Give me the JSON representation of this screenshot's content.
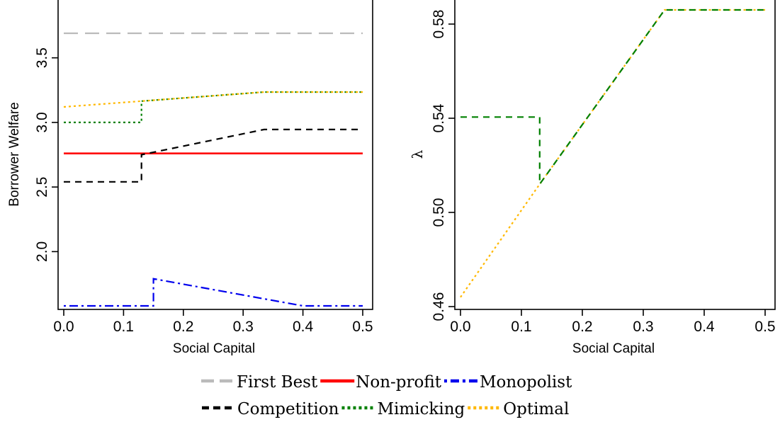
{
  "chart_data": [
    {
      "type": "line",
      "xlabel": "Social Capital",
      "ylabel": "Borrower Welfare",
      "xlim": [
        0.0,
        0.5
      ],
      "ylim": [
        1.6,
        3.9
      ],
      "x_ticks": [
        "0.0",
        "0.1",
        "0.2",
        "0.3",
        "0.4",
        "0.5"
      ],
      "y_ticks": [
        "2.0",
        "2.5",
        "3.0",
        "3.5"
      ],
      "series": [
        {
          "name": "First Best",
          "color": "#bbbbbb",
          "dash": "long",
          "points": [
            [
              0.0,
              3.69
            ],
            [
              0.5,
              3.69
            ]
          ]
        },
        {
          "name": "Non-profit",
          "color": "#ff0000",
          "dash": "solid",
          "points": [
            [
              0.0,
              2.76
            ],
            [
              0.5,
              2.76
            ]
          ]
        },
        {
          "name": "Monopolist",
          "color": "#0000ee",
          "dash": "dotdash",
          "points": [
            [
              0.0,
              1.58
            ],
            [
              0.15,
              1.58
            ],
            [
              0.15,
              1.79
            ],
            [
              0.4,
              1.58
            ],
            [
              0.5,
              1.58
            ]
          ]
        },
        {
          "name": "Competition",
          "color": "#000000",
          "dash": "dash",
          "points": [
            [
              0.0,
              2.54
            ],
            [
              0.13,
              2.54
            ],
            [
              0.13,
              2.75
            ],
            [
              0.335,
              2.945
            ],
            [
              0.5,
              2.945
            ]
          ]
        },
        {
          "name": "Mimicking",
          "color": "#008000",
          "dash": "dot",
          "points": [
            [
              0.0,
              3.0
            ],
            [
              0.13,
              3.0
            ],
            [
              0.13,
              3.165
            ],
            [
              0.335,
              3.235
            ],
            [
              0.5,
              3.235
            ]
          ]
        },
        {
          "name": "Optimal",
          "color": "#ffb800",
          "dash": "dot",
          "points": [
            [
              0.0,
              3.12
            ],
            [
              0.13,
              3.165
            ],
            [
              0.335,
              3.235
            ],
            [
              0.5,
              3.235
            ]
          ]
        }
      ]
    },
    {
      "type": "line",
      "xlabel": "Social Capital",
      "ylabel": "λ",
      "xlim": [
        0.0,
        0.5
      ],
      "ylim": [
        0.46,
        0.588
      ],
      "x_ticks": [
        "0.0",
        "0.1",
        "0.2",
        "0.3",
        "0.4",
        "0.5"
      ],
      "y_ticks": [
        "0.46",
        "0.50",
        "0.54",
        "0.58"
      ],
      "series": [
        {
          "name": "Optimal",
          "color": "#ffb800",
          "dash": "dot",
          "points": [
            [
              0.0,
              0.464
            ],
            [
              0.13,
              0.512
            ],
            [
              0.335,
              0.586
            ],
            [
              0.5,
              0.586
            ]
          ]
        },
        {
          "name": "Mimicking",
          "color": "#008000",
          "dash": "dash",
          "points": [
            [
              0.0,
              0.5405
            ],
            [
              0.13,
              0.5405
            ],
            [
              0.13,
              0.512
            ],
            [
              0.335,
              0.586
            ],
            [
              0.5,
              0.586
            ]
          ]
        }
      ]
    }
  ],
  "legend": {
    "entries": [
      {
        "label": "First Best",
        "color": "#bbbbbb",
        "dash": "long"
      },
      {
        "label": "Non-profit",
        "color": "#ff0000",
        "dash": "solid"
      },
      {
        "label": "Monopolist",
        "color": "#0000ee",
        "dash": "dotdash"
      },
      {
        "label": "Competition",
        "color": "#000000",
        "dash": "dash"
      },
      {
        "label": "Mimicking",
        "color": "#008000",
        "dash": "dot"
      },
      {
        "label": "Optimal",
        "color": "#ffb800",
        "dash": "dot"
      }
    ],
    "placement": "bottom"
  }
}
